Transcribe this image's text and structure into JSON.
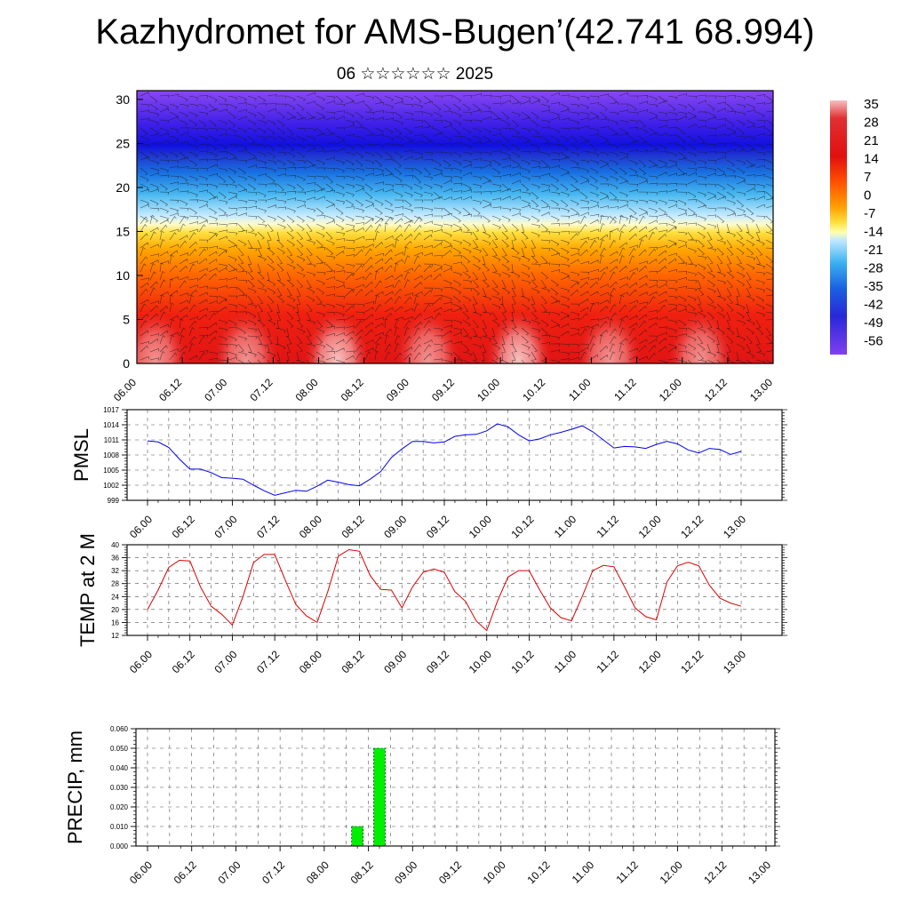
{
  "header": {
    "title": "Kazhydromet for AMS-Bugen’(42.741 68.994)",
    "subtitle": "06 ☆☆☆☆☆☆ 2025"
  },
  "chart_data": [
    {
      "type": "heatmap",
      "name": "temperature-height-section",
      "x_ticks": [
        "06.00",
        "06.12",
        "07.00",
        "07.12",
        "08.00",
        "08.12",
        "09.00",
        "09.12",
        "10.00",
        "10.12",
        "11.00",
        "11.12",
        "12.00",
        "12.12",
        "13.00"
      ],
      "ylim": [
        0,
        31
      ],
      "y_ticks": [
        0,
        5,
        10,
        15,
        20,
        25,
        30
      ],
      "colorbar": {
        "labels": [
          "35",
          "28",
          "21",
          "14",
          "7",
          "0",
          "-7",
          "-14",
          "-21",
          "-28",
          "-35",
          "-42",
          "-49",
          "-56"
        ],
        "colors": [
          "#f4b3b3",
          "#dd1111",
          "#ff5a00",
          "#ffa000",
          "#ffe040",
          "#ffffa0",
          "#c0e8ff",
          "#3ab0f0",
          "#1560e0",
          "#2030d8",
          "#3010f0",
          "#8040f0"
        ]
      },
      "overlay": "wind barbs"
    },
    {
      "type": "line",
      "ylabel": "PMSL",
      "ylim": [
        999,
        1017
      ],
      "y_ticks": [
        999,
        1002,
        1005,
        1008,
        1011,
        1014,
        1017
      ],
      "x_ticks": [
        "06.00",
        "06.12",
        "07.00",
        "07.12",
        "08.00",
        "08.12",
        "09.00",
        "09.12",
        "10.00",
        "10.12",
        "11.00",
        "11.12",
        "12.00",
        "12.12",
        "13.00"
      ],
      "color": "#0000ee",
      "x": [
        0,
        3,
        6,
        9,
        12,
        15,
        18,
        21,
        24,
        27,
        30,
        33,
        36,
        39,
        42,
        45,
        48,
        51,
        54,
        57,
        60,
        63,
        66,
        69,
        72,
        75,
        78,
        81,
        84,
        87,
        90,
        93,
        96,
        99,
        102,
        105,
        108,
        111,
        114,
        117,
        120,
        123,
        126,
        129,
        132,
        135,
        138,
        141,
        144,
        147,
        150,
        153,
        156,
        159,
        162,
        165,
        168
      ],
      "values": [
        1010.8,
        1010.6,
        1009.5,
        1007.2,
        1005.2,
        1005.2,
        1004.5,
        1003.5,
        1003.4,
        1003.2,
        1002.0,
        1000.9,
        1000.0,
        1000.5,
        1001.0,
        1000.8,
        1001.8,
        1003.0,
        1002.6,
        1002.1,
        1001.9,
        1003.2,
        1004.7,
        1007.5,
        1009.2,
        1010.7,
        1010.7,
        1010.4,
        1010.6,
        1011.7,
        1012.0,
        1012.1,
        1012.8,
        1014.2,
        1013.6,
        1012.0,
        1010.8,
        1011.2,
        1012.0,
        1012.5,
        1013.1,
        1013.8,
        1012.6,
        1011.0,
        1009.4,
        1009.7,
        1009.6,
        1009.3,
        1010.1,
        1010.7,
        1010.2,
        1009.0,
        1008.4,
        1009.3,
        1009.1,
        1008.1,
        1008.7
      ]
    },
    {
      "type": "line",
      "ylabel": "TEMP at 2 M",
      "ylim": [
        12,
        40
      ],
      "y_ticks": [
        12,
        16,
        20,
        24,
        28,
        32,
        36,
        40
      ],
      "x_ticks": [
        "06.00",
        "06.12",
        "07.00",
        "07.12",
        "08.00",
        "08.12",
        "09.00",
        "09.12",
        "10.00",
        "10.12",
        "11.00",
        "11.12",
        "12.00",
        "12.12",
        "13.00"
      ],
      "color": "#dd0000",
      "x": [
        0,
        3,
        6,
        9,
        12,
        15,
        18,
        21,
        24,
        27,
        30,
        33,
        36,
        39,
        42,
        45,
        48,
        51,
        54,
        57,
        60,
        63,
        66,
        69,
        72,
        75,
        78,
        81,
        84,
        87,
        90,
        93,
        96,
        99,
        102,
        105,
        108,
        111,
        114,
        117,
        120,
        123,
        126,
        129,
        132,
        135,
        138,
        141,
        144,
        147,
        150,
        153,
        156,
        159,
        162,
        165,
        168
      ],
      "values": [
        20,
        26,
        33,
        35.2,
        35,
        27,
        21,
        18.5,
        15.2,
        24,
        34.5,
        37,
        37,
        29,
        21.5,
        18,
        16,
        25.5,
        36.5,
        38.5,
        38,
        30.5,
        26.2,
        26,
        20.5,
        27,
        31.5,
        32.5,
        31.5,
        25.5,
        22.5,
        16.5,
        13.5,
        22.5,
        30,
        32,
        32,
        26,
        20.5,
        17.5,
        16.5,
        24,
        32,
        33.6,
        33.2,
        27,
        20.5,
        17.8,
        16.8,
        28.5,
        33.5,
        34.6,
        33.5,
        27.5,
        23.5,
        22,
        21
      ]
    },
    {
      "type": "bar",
      "ylabel": "PRECIP, mm",
      "ylim": [
        0,
        0.06
      ],
      "y_ticks": [
        "0.000",
        "0.010",
        "0.020",
        "0.030",
        "0.040",
        "0.050",
        "0.060"
      ],
      "x_ticks": [
        "06.00",
        "06.12",
        "07.00",
        "07.12",
        "08.00",
        "08.12",
        "09.00",
        "09.12",
        "10.00",
        "10.12",
        "11.00",
        "11.12",
        "12.00",
        "12.12",
        "13.00"
      ],
      "color": "#00ee00",
      "bars": [
        {
          "x": 57,
          "value": 0.01
        },
        {
          "x": 63,
          "value": 0.05
        }
      ]
    }
  ]
}
